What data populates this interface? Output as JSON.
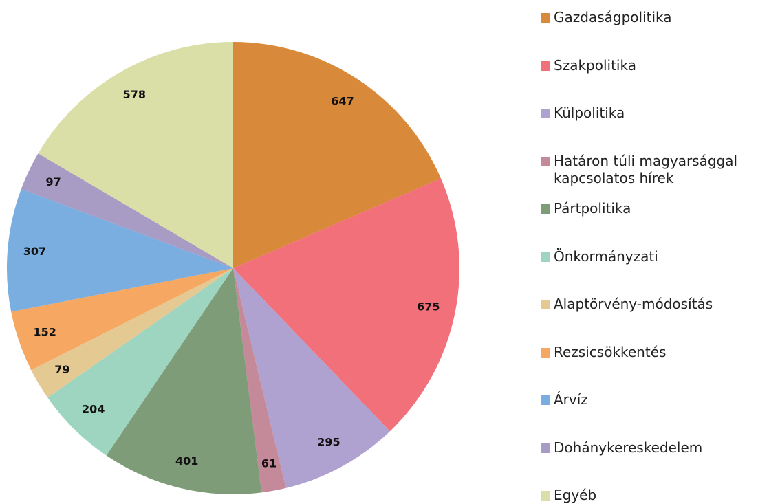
{
  "chart_data": {
    "type": "pie",
    "categories": [
      "Gazdaságpolitika",
      "Szakpolitika",
      "Külpolitika",
      "Határon túli magyarsággal kapcsolatos hírek",
      "Pártpolitika",
      "Önkormányzati",
      "Alaptörvény-módosítás",
      "Rezsicsökkentés",
      "Árvíz",
      "Dohánykereskedelem",
      "Egyéb"
    ],
    "values": [
      647,
      675,
      295,
      61,
      401,
      204,
      79,
      152,
      307,
      97,
      578
    ],
    "colors": [
      "#d9893a",
      "#f2707a",
      "#b0a2d0",
      "#c58a9a",
      "#7f9c78",
      "#9dd5c0",
      "#e4c992",
      "#f6a862",
      "#7aaee0",
      "#a89bc4",
      "#dadfa8"
    ],
    "legend": "right"
  }
}
